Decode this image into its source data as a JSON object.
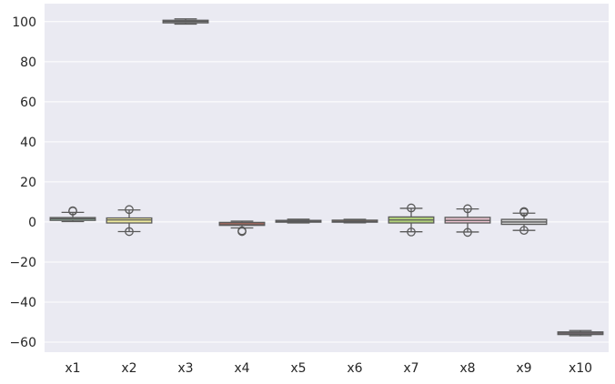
{
  "chart_data": {
    "type": "box",
    "title": "",
    "xlabel": "",
    "ylabel": "",
    "ylim": [
      -65,
      109
    ],
    "yticks": [
      100,
      80,
      60,
      40,
      20,
      0,
      -20,
      -40,
      -60
    ],
    "ytick_labels": [
      "100",
      "80",
      "60",
      "40",
      "20",
      "0",
      "−20",
      "−40",
      "−60"
    ],
    "categories": [
      "x1",
      "x2",
      "x3",
      "x4",
      "x5",
      "x6",
      "x7",
      "x8",
      "x9",
      "x10"
    ],
    "grid": true,
    "colors": {
      "background": "#eaeaf2",
      "grid": "#ffffff",
      "line": "#5a5a5a",
      "boxes": [
        "#8fb89f",
        "#f0ec9e",
        "#b3b3b3",
        "#d9725f",
        "#8f9aa8",
        "#d9a375",
        "#b2d27a",
        "#ebc3cf",
        "#cfcfcf",
        "#a9879a"
      ]
    },
    "boxes": [
      {
        "category": "x1",
        "whislo": 0.2,
        "q1": 0.8,
        "median": 1.6,
        "q3": 2.2,
        "whishi": 4.8,
        "fliers": [
          5.4,
          5.6
        ]
      },
      {
        "category": "x2",
        "whislo": -4.8,
        "q1": -0.5,
        "median": 1.0,
        "q3": 2.0,
        "whishi": 6.0,
        "fliers": [
          -4.8,
          6.2
        ]
      },
      {
        "category": "x3",
        "whislo": 98.8,
        "q1": 99.4,
        "median": 100.1,
        "q3": 100.7,
        "whishi": 101.4,
        "fliers": []
      },
      {
        "category": "x4",
        "whislo": -3.0,
        "q1": -1.7,
        "median": -1.0,
        "q3": -0.2,
        "whishi": 0.4,
        "fliers": [
          -4.4,
          -4.8
        ]
      },
      {
        "category": "x5",
        "whislo": -0.5,
        "q1": -0.1,
        "median": 0.3,
        "q3": 0.8,
        "whishi": 1.4,
        "fliers": []
      },
      {
        "category": "x6",
        "whislo": -0.4,
        "q1": -0.1,
        "median": 0.3,
        "q3": 0.9,
        "whishi": 1.3,
        "fliers": []
      },
      {
        "category": "x7",
        "whislo": -4.9,
        "q1": -0.5,
        "median": 1.0,
        "q3": 2.5,
        "whishi": 6.8,
        "fliers": [
          -5.0,
          7.0
        ]
      },
      {
        "category": "x8",
        "whislo": -5.0,
        "q1": -0.5,
        "median": 0.8,
        "q3": 2.3,
        "whishi": 6.5,
        "fliers": [
          -5.2,
          6.6
        ]
      },
      {
        "category": "x9",
        "whislo": -4.2,
        "q1": -1.2,
        "median": 0.0,
        "q3": 1.3,
        "whishi": 4.4,
        "fliers": [
          -4.2,
          4.8,
          5.2
        ]
      },
      {
        "category": "x10",
        "whislo": -56.8,
        "q1": -56.2,
        "median": -55.5,
        "q3": -54.9,
        "whishi": -54.2,
        "fliers": []
      }
    ]
  }
}
